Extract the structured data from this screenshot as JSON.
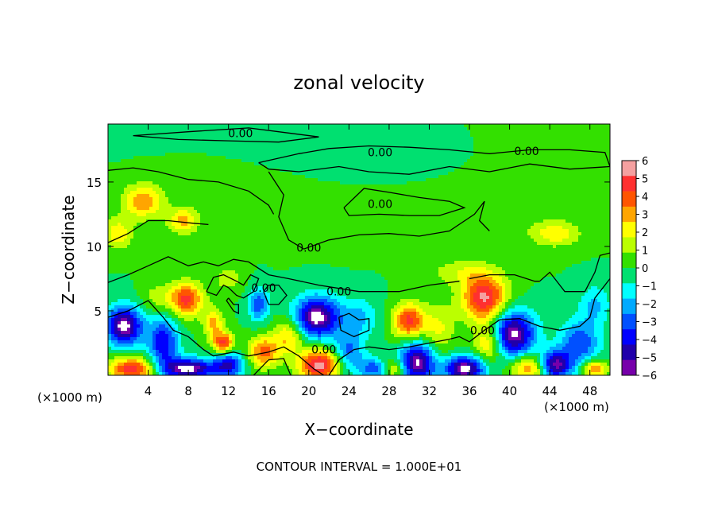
{
  "chart_data": {
    "type": "heatmap",
    "title": "zonal velocity",
    "xlabel": "X−coordinate",
    "ylabel": "Z−coordinate",
    "xunit_left": "(×1000 m)",
    "xunit_right": "(×1000 m)",
    "xlim": [
      0,
      50
    ],
    "ylim": [
      0,
      19.5
    ],
    "x_ticks": [
      4,
      8,
      12,
      16,
      20,
      24,
      28,
      32,
      36,
      40,
      44,
      48
    ],
    "y_ticks": [
      5,
      10,
      15
    ],
    "grid": false,
    "contour_label": "0.00",
    "footer": "CONTOUR INTERVAL = 1.000E+01",
    "colorbar": {
      "position": "right",
      "min": -6,
      "max": 6,
      "ticks": [
        "6",
        "5",
        "4",
        "3",
        "2",
        "1",
        "0",
        "−1",
        "−2",
        "−3",
        "−4",
        "−5",
        "−6"
      ],
      "colors": [
        "#f4a0a0",
        "#ff3030",
        "#ff5500",
        "#ffa500",
        "#ffff00",
        "#bbff00",
        "#33e000",
        "#00e070",
        "#00ffff",
        "#00aaff",
        "#0050ff",
        "#0000ff",
        "#2000aa",
        "#7700aa"
      ]
    },
    "features": [
      {
        "x": 1.6,
        "z": 3.8,
        "u": -6.5,
        "rx": 1.8,
        "rz": 1.5
      },
      {
        "x": 2.4,
        "z": 0.5,
        "u": 5.2,
        "rx": 2.4,
        "rz": 0.9
      },
      {
        "x": 5.0,
        "z": 6.0,
        "u": 1.5,
        "rx": 1.5,
        "rz": 1.2
      },
      {
        "x": 7.8,
        "z": 5.9,
        "u": 5.0,
        "rx": 1.6,
        "rz": 1.3
      },
      {
        "x": 8.0,
        "z": 0.5,
        "u": -6.5,
        "rx": 2.6,
        "rz": 0.8
      },
      {
        "x": 5.5,
        "z": 2.5,
        "u": -4.5,
        "rx": 1.5,
        "rz": 2.0
      },
      {
        "x": 11.5,
        "z": 2.5,
        "u": 5.0,
        "rx": 1.0,
        "rz": 0.8
      },
      {
        "x": 10.5,
        "z": 4.0,
        "u": 3.0,
        "rx": 1.0,
        "rz": 1.2
      },
      {
        "x": 12.0,
        "z": 0.8,
        "u": -4.5,
        "rx": 1.5,
        "rz": 1.0
      },
      {
        "x": 15.0,
        "z": 5.5,
        "u": -3.5,
        "rx": 1.0,
        "rz": 1.3
      },
      {
        "x": 15.5,
        "z": 1.8,
        "u": 4.0,
        "rx": 1.5,
        "rz": 1.2
      },
      {
        "x": 18.0,
        "z": 3.0,
        "u": 3.0,
        "rx": 1.5,
        "rz": 1.4
      },
      {
        "x": 20.8,
        "z": 4.5,
        "u": -6.5,
        "rx": 2.2,
        "rz": 1.6
      },
      {
        "x": 21.0,
        "z": 0.8,
        "u": 6.0,
        "rx": 2.0,
        "rz": 1.2
      },
      {
        "x": 24.0,
        "z": 1.8,
        "u": -3.0,
        "rx": 1.5,
        "rz": 1.5
      },
      {
        "x": 25.0,
        "z": 4.5,
        "u": -2.0,
        "rx": 2.0,
        "rz": 1.5
      },
      {
        "x": 26.5,
        "z": 0.5,
        "u": -3.5,
        "rx": 1.5,
        "rz": 0.8
      },
      {
        "x": 28.5,
        "z": 0.5,
        "u": 3.0,
        "rx": 1.2,
        "rz": 0.8
      },
      {
        "x": 30.0,
        "z": 4.2,
        "u": 5.0,
        "rx": 1.6,
        "rz": 1.4
      },
      {
        "x": 30.8,
        "z": 1.0,
        "u": -6.2,
        "rx": 1.8,
        "rz": 1.6
      },
      {
        "x": 33.0,
        "z": 3.5,
        "u": 2.0,
        "rx": 1.5,
        "rz": 2.0
      },
      {
        "x": 35.5,
        "z": 0.5,
        "u": -6.5,
        "rx": 2.0,
        "rz": 1.0
      },
      {
        "x": 37.5,
        "z": 6.0,
        "u": 5.8,
        "rx": 2.2,
        "rz": 1.8
      },
      {
        "x": 38.0,
        "z": 2.5,
        "u": 3.5,
        "rx": 1.5,
        "rz": 1.5
      },
      {
        "x": 40.3,
        "z": 3.2,
        "u": -6.5,
        "rx": 2.2,
        "rz": 1.8
      },
      {
        "x": 42.0,
        "z": 0.6,
        "u": 4.0,
        "rx": 1.8,
        "rz": 1.0
      },
      {
        "x": 44.5,
        "z": 0.8,
        "u": -6.0,
        "rx": 1.6,
        "rz": 1.1
      },
      {
        "x": 47.0,
        "z": 2.5,
        "u": -3.5,
        "rx": 2.0,
        "rz": 1.8
      },
      {
        "x": 48.5,
        "z": 0.5,
        "u": 4.0,
        "rx": 1.2,
        "rz": 0.7
      },
      {
        "x": 3.5,
        "z": 13.5,
        "u": 3.5,
        "rx": 2.0,
        "rz": 1.3
      },
      {
        "x": 1.0,
        "z": 11.0,
        "u": 2.5,
        "rx": 1.5,
        "rz": 1.2
      },
      {
        "x": 7.5,
        "z": 12.0,
        "u": 3.0,
        "rx": 1.5,
        "rz": 1.0
      },
      {
        "x": 44.5,
        "z": 11.0,
        "u": 2.5,
        "rx": 2.5,
        "rz": 1.0
      },
      {
        "x": 35.0,
        "z": 8.0,
        "u": 1.5,
        "rx": 3.0,
        "rz": 1.0
      },
      {
        "x": 48.5,
        "z": 5.5,
        "u": -2.0,
        "rx": 1.5,
        "rz": 1.5
      },
      {
        "x": 12.0,
        "z": 7.5,
        "u": 1.5,
        "rx": 1.5,
        "rz": 1.0
      },
      {
        "x": 24.0,
        "z": 17.0,
        "u": -0.8,
        "rx": 12.0,
        "rz": 2.0
      },
      {
        "x": 15.0,
        "z": 15.0,
        "u": 0.5,
        "rx": 8.0,
        "rz": 3.0
      },
      {
        "x": 40.0,
        "z": 16.0,
        "u": 0.4,
        "rx": 8.0,
        "rz": 3.0
      },
      {
        "x": 30.0,
        "z": 12.5,
        "u": 0.6,
        "rx": 10.0,
        "rz": 2.0
      }
    ],
    "contours": [
      [
        [
          2.5,
          18.6
        ],
        [
          8.0,
          18.9
        ],
        [
          14.0,
          19.2
        ],
        [
          18.0,
          18.8
        ],
        [
          21.0,
          18.5
        ],
        [
          17.0,
          18.1
        ],
        [
          12.0,
          18.2
        ],
        [
          7.0,
          18.3
        ],
        [
          2.5,
          18.6
        ]
      ],
      [
        [
          15.0,
          16.5
        ],
        [
          19.0,
          17.2
        ],
        [
          22.0,
          17.6
        ],
        [
          26.0,
          17.8
        ],
        [
          30.0,
          17.7
        ],
        [
          34.0,
          17.5
        ],
        [
          38.0,
          17.2
        ],
        [
          42.0,
          17.5
        ],
        [
          46.0,
          17.5
        ],
        [
          49.5,
          17.3
        ],
        [
          50.0,
          16.2
        ],
        [
          46.0,
          16.0
        ],
        [
          42.0,
          16.4
        ],
        [
          38.0,
          15.8
        ],
        [
          34.0,
          16.2
        ],
        [
          30.0,
          15.6
        ],
        [
          26.0,
          15.8
        ],
        [
          23.0,
          16.2
        ],
        [
          19.0,
          15.8
        ],
        [
          16.0,
          16.0
        ],
        [
          15.0,
          16.5
        ]
      ],
      [
        [
          0.0,
          15.9
        ],
        [
          2.5,
          16.1
        ],
        [
          5.0,
          15.8
        ],
        [
          8.0,
          15.2
        ],
        [
          11.0,
          15.0
        ],
        [
          14.0,
          14.3
        ],
        [
          16.0,
          13.2
        ],
        [
          16.5,
          12.5
        ]
      ],
      [
        [
          16.0,
          15.8
        ],
        [
          17.5,
          14.0
        ],
        [
          17.0,
          12.3
        ],
        [
          18.0,
          10.5
        ],
        [
          19.5,
          9.8
        ]
      ],
      [
        [
          23.5,
          13.0
        ],
        [
          25.5,
          14.5
        ],
        [
          28.0,
          14.2
        ],
        [
          31.0,
          13.8
        ],
        [
          34.0,
          13.5
        ],
        [
          35.5,
          13.0
        ],
        [
          33.0,
          12.4
        ],
        [
          30.0,
          12.4
        ],
        [
          27.0,
          12.5
        ],
        [
          24.0,
          12.4
        ],
        [
          23.5,
          13.0
        ]
      ],
      [
        [
          19.5,
          9.8
        ],
        [
          22.0,
          10.5
        ],
        [
          25.0,
          10.9
        ],
        [
          28.0,
          11.0
        ],
        [
          31.0,
          10.8
        ],
        [
          34.0,
          11.2
        ],
        [
          36.5,
          12.5
        ],
        [
          37.5,
          13.5
        ],
        [
          37.0,
          12.0
        ],
        [
          38.0,
          11.2
        ]
      ],
      [
        [
          0.0,
          10.3
        ],
        [
          2.0,
          11.0
        ],
        [
          4.0,
          12.0
        ],
        [
          6.0,
          12.0
        ],
        [
          8.5,
          11.8
        ],
        [
          10.0,
          11.7
        ]
      ],
      [
        [
          0.0,
          7.2
        ],
        [
          2.0,
          7.8
        ],
        [
          4.0,
          8.5
        ],
        [
          6.0,
          9.2
        ],
        [
          8.0,
          8.5
        ],
        [
          9.5,
          8.8
        ],
        [
          11.0,
          8.5
        ],
        [
          12.5,
          9.0
        ],
        [
          14.0,
          8.8
        ],
        [
          16.0,
          7.8
        ],
        [
          18.0,
          7.5
        ],
        [
          21.0,
          7.0
        ],
        [
          25.0,
          6.5
        ],
        [
          29.0,
          6.5
        ],
        [
          32.0,
          7.0
        ],
        [
          35.0,
          7.3
        ]
      ],
      [
        [
          9.8,
          6.5
        ],
        [
          10.8,
          6.2
        ],
        [
          11.5,
          7.0
        ],
        [
          12.0,
          6.8
        ],
        [
          12.8,
          6.2
        ],
        [
          13.5,
          6.0
        ],
        [
          14.5,
          6.5
        ],
        [
          15.0,
          7.5
        ],
        [
          14.2,
          7.8
        ],
        [
          13.5,
          7.0
        ],
        [
          12.8,
          7.3
        ],
        [
          11.5,
          7.8
        ],
        [
          10.5,
          7.6
        ],
        [
          9.8,
          6.5
        ]
      ],
      [
        [
          12.0,
          6.0
        ],
        [
          12.5,
          5.5
        ],
        [
          13.0,
          5.5
        ],
        [
          13.0,
          4.8
        ],
        [
          12.5,
          5.0
        ],
        [
          11.8,
          5.8
        ],
        [
          12.0,
          6.0
        ]
      ],
      [
        [
          15.5,
          6.5
        ],
        [
          16.0,
          5.5
        ],
        [
          17.0,
          5.5
        ],
        [
          17.8,
          6.2
        ],
        [
          17.0,
          7.0
        ],
        [
          16.0,
          7.0
        ],
        [
          15.5,
          6.5
        ]
      ],
      [
        [
          0.0,
          4.5
        ],
        [
          2.0,
          5.0
        ],
        [
          4.0,
          5.8
        ],
        [
          5.5,
          4.5
        ],
        [
          6.5,
          3.5
        ],
        [
          8.0,
          3.0
        ],
        [
          9.5,
          2.0
        ],
        [
          10.5,
          1.5
        ],
        [
          12.5,
          1.8
        ],
        [
          14.0,
          1.5
        ],
        [
          16.0,
          1.8
        ],
        [
          17.5,
          2.2
        ],
        [
          19.0,
          1.5
        ],
        [
          20.5,
          0.5
        ],
        [
          21.5,
          0.0
        ]
      ],
      [
        [
          14.5,
          0.0
        ],
        [
          16.0,
          1.2
        ],
        [
          17.5,
          1.3
        ],
        [
          18.2,
          0.0
        ]
      ],
      [
        [
          22.0,
          0.0
        ],
        [
          23.0,
          1.2
        ],
        [
          24.5,
          2.0
        ],
        [
          26.0,
          2.2
        ],
        [
          28.0,
          2.0
        ],
        [
          30.0,
          2.2
        ],
        [
          32.0,
          2.5
        ],
        [
          34.0,
          2.8
        ],
        [
          35.0,
          3.0
        ],
        [
          36.0,
          2.6
        ],
        [
          37.5,
          3.5
        ],
        [
          39.0,
          4.3
        ],
        [
          41.0,
          4.4
        ],
        [
          43.0,
          3.8
        ],
        [
          45.0,
          3.5
        ],
        [
          47.0,
          3.8
        ],
        [
          48.0,
          4.5
        ],
        [
          48.5,
          6.0
        ],
        [
          50.0,
          7.5
        ]
      ],
      [
        [
          43.0,
          7.3
        ],
        [
          44.0,
          8.0
        ],
        [
          45.5,
          6.5
        ],
        [
          47.5,
          6.5
        ],
        [
          48.5,
          8.0
        ],
        [
          49.0,
          9.3
        ],
        [
          50.0,
          9.5
        ]
      ],
      [
        [
          36.0,
          7.5
        ],
        [
          38.0,
          7.8
        ],
        [
          40.5,
          7.8
        ],
        [
          42.5,
          7.3
        ],
        [
          43.0,
          7.3
        ]
      ],
      [
        [
          23.0,
          4.5
        ],
        [
          24.0,
          4.8
        ],
        [
          25.0,
          4.3
        ],
        [
          26.0,
          4.4
        ],
        [
          26.0,
          3.5
        ],
        [
          24.5,
          3.0
        ],
        [
          23.2,
          3.5
        ],
        [
          23.0,
          4.5
        ]
      ]
    ],
    "contour_labels": [
      {
        "x": 13.2,
        "z": 18.8,
        "text": "0.00"
      },
      {
        "x": 27.1,
        "z": 17.3,
        "text": "0.00"
      },
      {
        "x": 41.7,
        "z": 17.4,
        "text": "0.00"
      },
      {
        "x": 27.1,
        "z": 13.3,
        "text": "0.00"
      },
      {
        "x": 20.0,
        "z": 9.9,
        "text": "0.00"
      },
      {
        "x": 23.0,
        "z": 6.5,
        "text": "0.00"
      },
      {
        "x": 15.5,
        "z": 6.8,
        "text": "0.00"
      },
      {
        "x": 21.5,
        "z": 2.0,
        "text": "0.00"
      },
      {
        "x": 37.3,
        "z": 3.5,
        "text": "0.00"
      }
    ]
  }
}
